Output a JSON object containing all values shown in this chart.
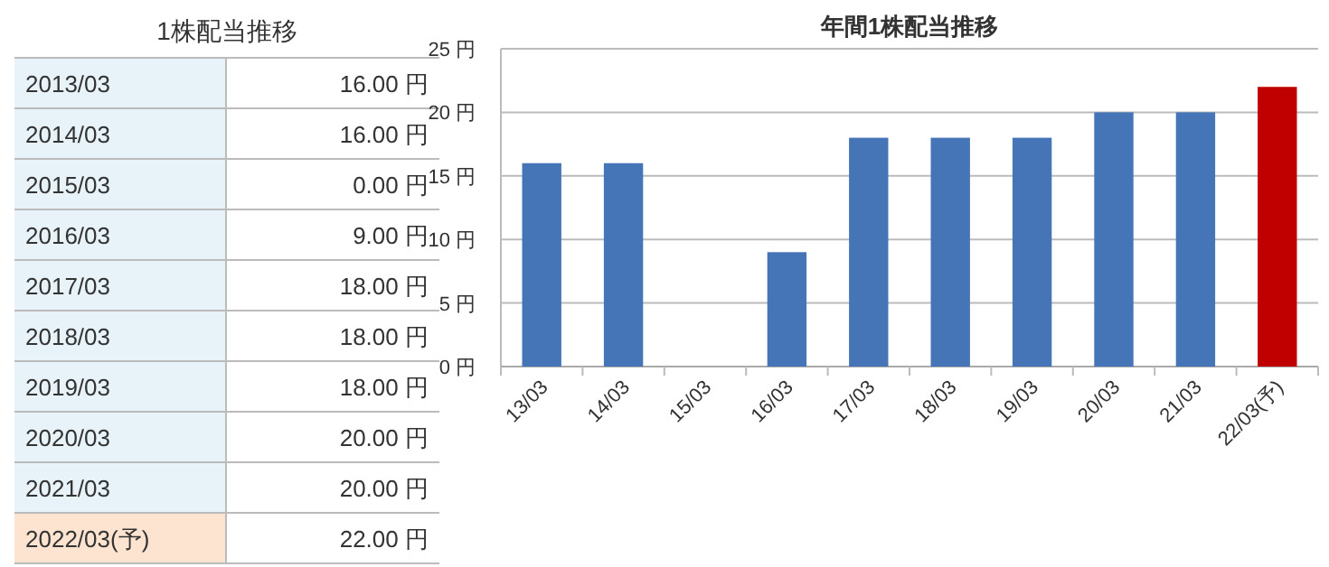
{
  "chart_data": [
    {
      "type": "other",
      "title": "1株配当推移",
      "categories": [
        "2013/03",
        "2014/03",
        "2015/03",
        "2016/03",
        "2017/03",
        "2018/03",
        "2019/03",
        "2020/03",
        "2021/03",
        "2022/03(予)"
      ],
      "value_labels": [
        "16.00 円",
        "16.00 円",
        "0.00 円",
        "9.00 円",
        "18.00 円",
        "18.00 円",
        "18.00 円",
        "20.00 円",
        "20.00 円",
        "22.00 円"
      ],
      "colors": [
        "#e7f3f8",
        "#e7f3f8",
        "#e7f3f8",
        "#e7f3f8",
        "#e7f3f8",
        "#e7f3f8",
        "#e7f3f8",
        "#e7f3f8",
        "#e7f3f8",
        "#fde4d0"
      ]
    },
    {
      "type": "bar",
      "title": "年間1株配当推移",
      "categories": [
        "13/03",
        "14/03",
        "15/03",
        "16/03",
        "17/03",
        "18/03",
        "19/03",
        "20/03",
        "21/03",
        "22/03(予)"
      ],
      "values": [
        16,
        16,
        0,
        9,
        18,
        18,
        18,
        20,
        20,
        22
      ],
      "colors": [
        "#4575b6",
        "#4575b6",
        "#4575b6",
        "#4575b6",
        "#4575b6",
        "#4575b6",
        "#4575b6",
        "#4575b6",
        "#4575b6",
        "#c00000"
      ],
      "ylim": [
        0,
        25
      ],
      "yticks": [
        {
          "value": 0,
          "label": "0 円"
        },
        {
          "value": 5,
          "label": "5 円"
        },
        {
          "value": 10,
          "label": "10 円"
        },
        {
          "value": 15,
          "label": "15 円"
        },
        {
          "value": 20,
          "label": "20 円"
        },
        {
          "value": 25,
          "label": "25 円"
        }
      ],
      "grid": "y"
    }
  ]
}
